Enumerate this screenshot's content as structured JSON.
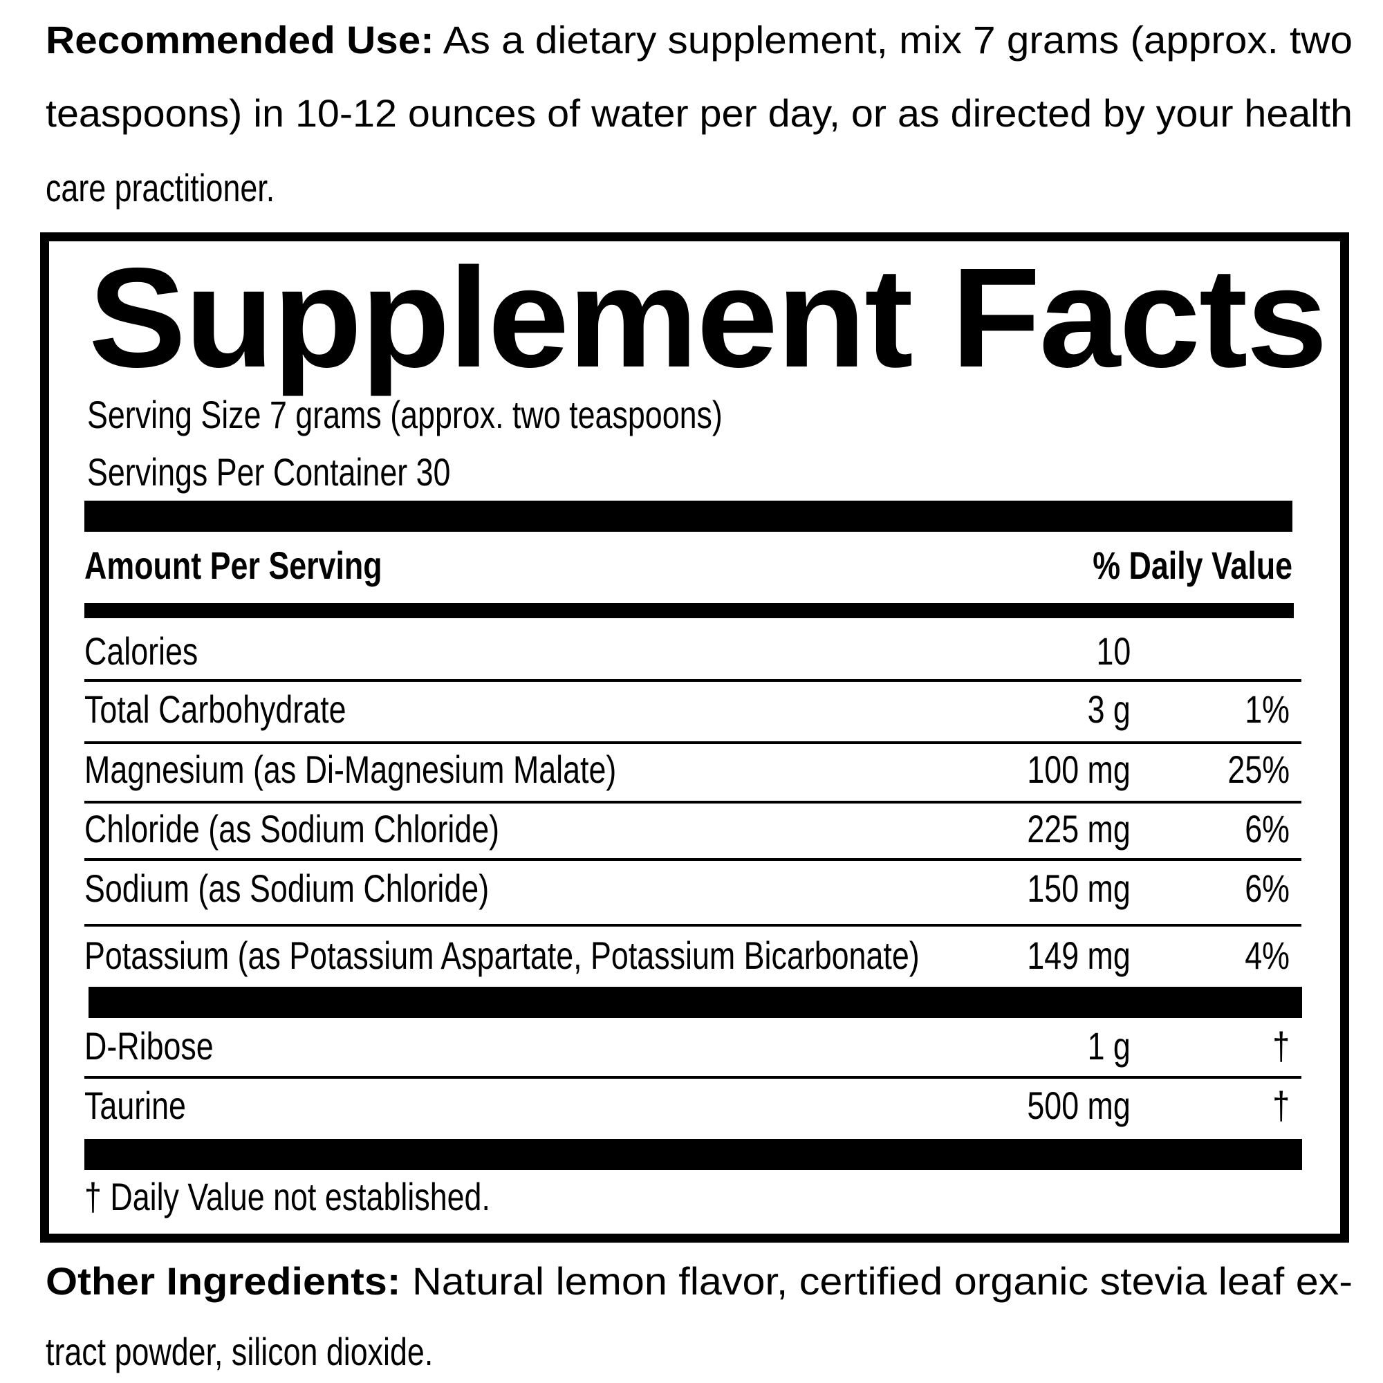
{
  "recommended_use": {
    "label": "Recommended Use:",
    "lines": [
      "As a dietary supplement, mix 7 grams (approx. two",
      "teaspoons) in 10-12 ounces of water per day, or as directed by your health",
      "care practitioner."
    ]
  },
  "facts": {
    "title": "Supplement Facts",
    "serving_size": "Serving Size  7 grams (approx. two teaspoons)",
    "servings_per_container": "Servings Per Container 30",
    "header_amount": "Amount Per Serving",
    "header_dv": "% Daily Value",
    "rows": [
      {
        "name": "Calories",
        "amount": "10",
        "dv": ""
      },
      {
        "name": "Total Carbohydrate",
        "amount": "3 g",
        "dv": "1%"
      },
      {
        "name": "Magnesium  (as Di-Magnesium Malate)",
        "amount": "100 mg",
        "dv": "25%"
      },
      {
        "name": "Chloride (as Sodium Chloride)",
        "amount": "225 mg",
        "dv": "6%"
      },
      {
        "name": "Sodium (as Sodium Chloride)",
        "amount": "150 mg",
        "dv": "6%"
      },
      {
        "name": "Potassium (as Potassium Aspartate, Potassium Bicarbonate)",
        "amount": "149 mg",
        "dv": "4%"
      },
      {
        "name": "D-Ribose",
        "amount": "1 g",
        "dv": "†"
      },
      {
        "name": "Taurine",
        "amount": "500 mg",
        "dv": "†"
      }
    ],
    "footnote": "† Daily Value not established."
  },
  "other_ingredients": {
    "label": "Other Ingredients:",
    "lines": [
      "Natural lemon flavor, certified organic stevia leaf ex-",
      "tract powder, silicon dioxide."
    ]
  }
}
